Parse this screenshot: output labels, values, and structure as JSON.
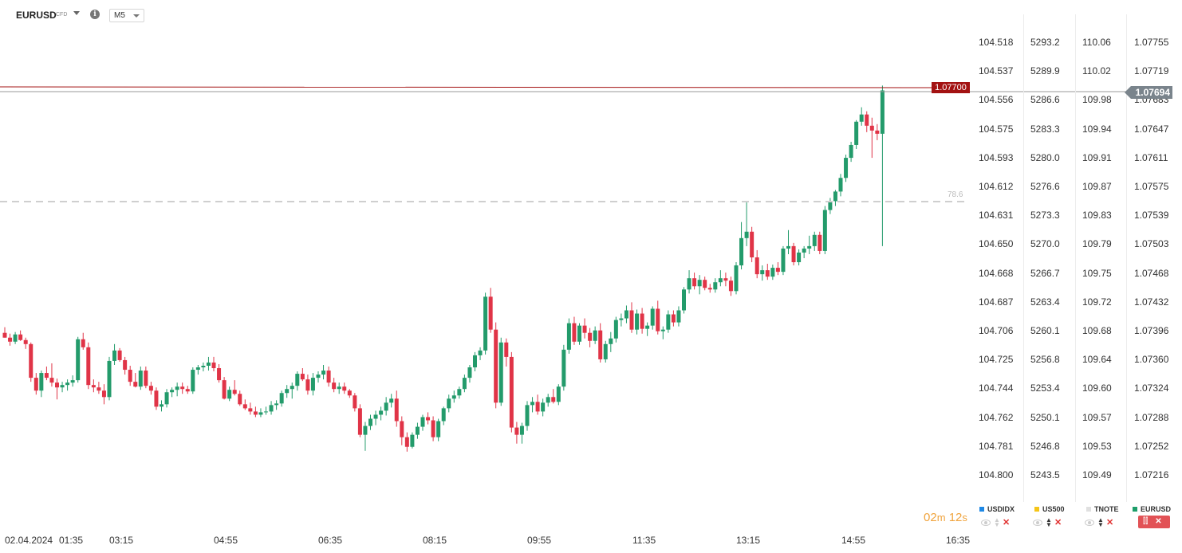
{
  "header": {
    "symbol": "EURUSD",
    "symbol_type": "CFD",
    "timeframe": "M5",
    "info_icon": "i"
  },
  "axes": {
    "usdidx": [
      "104.518",
      "104.537",
      "104.556",
      "104.575",
      "104.593",
      "104.612",
      "104.631",
      "104.650",
      "104.668",
      "104.687",
      "104.706",
      "104.725",
      "104.744",
      "104.762",
      "104.781",
      "104.800"
    ],
    "us500": [
      "5293.2",
      "5289.9",
      "5286.6",
      "5283.3",
      "5280.0",
      "5276.6",
      "5273.3",
      "5270.0",
      "5266.7",
      "5263.4",
      "5260.1",
      "5256.8",
      "5253.4",
      "5250.1",
      "5246.8",
      "5243.5"
    ],
    "tnote": [
      "110.06",
      "110.02",
      "109.98",
      "109.94",
      "109.91",
      "109.87",
      "109.83",
      "109.79",
      "109.75",
      "109.72",
      "109.68",
      "109.64",
      "109.60",
      "109.57",
      "109.53",
      "109.49"
    ],
    "eurusd": [
      "1.07755",
      "1.07719",
      "1.07683",
      "1.07647",
      "1.07611",
      "1.07575",
      "1.07539",
      "1.07503",
      "1.07468",
      "1.07432",
      "1.07396",
      "1.07360",
      "1.07324",
      "1.07288",
      "1.07252",
      "1.07216"
    ]
  },
  "price_tags": {
    "line_price": "1.07700",
    "current_price": "1.07694",
    "fib_level": "78.6"
  },
  "legend": [
    {
      "name": "USDIDX",
      "color": "#1e88e5"
    },
    {
      "name": "US500",
      "color": "#f5c518"
    },
    {
      "name": "TNOTE",
      "color": "#e0e0e0"
    },
    {
      "name": "EURUSD",
      "color": "#1d9e6a"
    }
  ],
  "countdown": {
    "minutes": "02",
    "m": "m",
    "seconds": "12",
    "s": "s"
  },
  "xaxis": {
    "date": "02.04.2024",
    "times": [
      "01:35",
      "03:15",
      "04:55",
      "06:35",
      "08:15",
      "09:55",
      "11:35",
      "13:15",
      "14:55",
      "16:35"
    ]
  },
  "colors": {
    "up": "#239b6b",
    "down": "#e03447",
    "line": "#a31212"
  },
  "chart_data": {
    "type": "candlestick",
    "symbol": "EURUSD",
    "timeframe": "M5",
    "y_range": [
      1.07216,
      1.07755
    ],
    "x_start": "02.04.2024 01:35",
    "candles": [
      [
        1.07392,
        1.07399,
        1.07386,
        1.07386
      ],
      [
        1.07386,
        1.07391,
        1.07376,
        1.07381
      ],
      [
        1.07381,
        1.07393,
        1.07378,
        1.0739
      ],
      [
        1.0739,
        1.07395,
        1.07382,
        1.07383
      ],
      [
        1.07383,
        1.07386,
        1.07372,
        1.07378
      ],
      [
        1.07378,
        1.0738,
        1.07331,
        1.07336
      ],
      [
        1.07336,
        1.07342,
        1.07315,
        1.0732
      ],
      [
        1.0732,
        1.07345,
        1.07312,
        1.07342
      ],
      [
        1.07342,
        1.0735,
        1.07333,
        1.07336
      ],
      [
        1.07336,
        1.07354,
        1.07325,
        1.0733
      ],
      [
        1.0733,
        1.07335,
        1.07309,
        1.07324
      ],
      [
        1.07324,
        1.07331,
        1.07318,
        1.07327
      ],
      [
        1.07327,
        1.07334,
        1.0732,
        1.0733
      ],
      [
        1.0733,
        1.07339,
        1.07325,
        1.07333
      ],
      [
        1.07333,
        1.07387,
        1.0733,
        1.07384
      ],
      [
        1.07384,
        1.07392,
        1.07371,
        1.07374
      ],
      [
        1.07374,
        1.0738,
        1.07322,
        1.07327
      ],
      [
        1.07327,
        1.07334,
        1.07318,
        1.07324
      ],
      [
        1.07324,
        1.07331,
        1.07316,
        1.0732
      ],
      [
        1.0732,
        1.07328,
        1.07303,
        1.07312
      ],
      [
        1.07312,
        1.07362,
        1.07308,
        1.07357
      ],
      [
        1.07357,
        1.07378,
        1.07352,
        1.0737
      ],
      [
        1.0737,
        1.07373,
        1.07356,
        1.07358
      ],
      [
        1.07358,
        1.07362,
        1.0734,
        1.07346
      ],
      [
        1.07346,
        1.07351,
        1.07326,
        1.07331
      ],
      [
        1.07331,
        1.07342,
        1.07324,
        1.07325
      ],
      [
        1.07325,
        1.0735,
        1.07321,
        1.07345
      ],
      [
        1.07345,
        1.0735,
        1.07323,
        1.07326
      ],
      [
        1.07326,
        1.07331,
        1.07315,
        1.0732
      ],
      [
        1.0732,
        1.07324,
        1.07296,
        1.073
      ],
      [
        1.073,
        1.07308,
        1.07294,
        1.07303
      ],
      [
        1.07303,
        1.07322,
        1.07299,
        1.07318
      ],
      [
        1.07318,
        1.07324,
        1.07312,
        1.07321
      ],
      [
        1.07321,
        1.0733,
        1.07313,
        1.07325
      ],
      [
        1.07325,
        1.0733,
        1.07316,
        1.07322
      ],
      [
        1.07322,
        1.07326,
        1.07316,
        1.07319
      ],
      [
        1.07319,
        1.07349,
        1.07316,
        1.07346
      ],
      [
        1.07346,
        1.07352,
        1.0734,
        1.07349
      ],
      [
        1.07349,
        1.07355,
        1.07344,
        1.07351
      ],
      [
        1.07351,
        1.07362,
        1.07345,
        1.07355
      ],
      [
        1.07355,
        1.07362,
        1.07344,
        1.07348
      ],
      [
        1.07348,
        1.07353,
        1.0733,
        1.07333
      ],
      [
        1.07333,
        1.07337,
        1.07309,
        1.0731
      ],
      [
        1.0731,
        1.07325,
        1.07307,
        1.07321
      ],
      [
        1.07321,
        1.07333,
        1.07314,
        1.07316
      ],
      [
        1.07316,
        1.0732,
        1.07301,
        1.07303
      ],
      [
        1.07303,
        1.07309,
        1.07296,
        1.07298
      ],
      [
        1.07298,
        1.07305,
        1.0729,
        1.07294
      ],
      [
        1.07294,
        1.073,
        1.07287,
        1.0729
      ],
      [
        1.0729,
        1.07298,
        1.07287,
        1.07293
      ],
      [
        1.07293,
        1.073,
        1.0729,
        1.07294
      ],
      [
        1.07294,
        1.07307,
        1.0729,
        1.07302
      ],
      [
        1.07302,
        1.07308,
        1.07296,
        1.07304
      ],
      [
        1.07304,
        1.0732,
        1.073,
        1.07317
      ],
      [
        1.07317,
        1.07327,
        1.07311,
        1.07322
      ],
      [
        1.07322,
        1.0733,
        1.0731,
        1.07326
      ],
      [
        1.07326,
        1.07344,
        1.0732,
        1.07341
      ],
      [
        1.07341,
        1.07348,
        1.07332,
        1.07334
      ],
      [
        1.07334,
        1.0734,
        1.07315,
        1.0732
      ],
      [
        1.0732,
        1.07342,
        1.07314,
        1.07336
      ],
      [
        1.07336,
        1.07344,
        1.0733,
        1.0734
      ],
      [
        1.0734,
        1.07352,
        1.07334,
        1.07345
      ],
      [
        1.07345,
        1.0735,
        1.07325,
        1.0733
      ],
      [
        1.0733,
        1.07336,
        1.07318,
        1.07322
      ],
      [
        1.07322,
        1.0733,
        1.07316,
        1.07325
      ],
      [
        1.07325,
        1.0733,
        1.07316,
        1.0732
      ],
      [
        1.0732,
        1.07322,
        1.07311,
        1.07314
      ],
      [
        1.07314,
        1.07317,
        1.07294,
        1.07298
      ],
      [
        1.07298,
        1.07303,
        1.07262,
        1.07265
      ],
      [
        1.07265,
        1.07281,
        1.07245,
        1.07276
      ],
      [
        1.07276,
        1.0729,
        1.07271,
        1.07285
      ],
      [
        1.07285,
        1.07295,
        1.07277,
        1.0729
      ],
      [
        1.0729,
        1.073,
        1.07283,
        1.07295
      ],
      [
        1.07295,
        1.07312,
        1.07289,
        1.07305
      ],
      [
        1.07305,
        1.07316,
        1.07299,
        1.0731
      ],
      [
        1.0731,
        1.0732,
        1.07275,
        1.07282
      ],
      [
        1.07282,
        1.07288,
        1.07252,
        1.07262
      ],
      [
        1.07262,
        1.07268,
        1.07244,
        1.0725
      ],
      [
        1.0725,
        1.07268,
        1.07248,
        1.07265
      ],
      [
        1.07265,
        1.0728,
        1.0726,
        1.07275
      ],
      [
        1.07275,
        1.0729,
        1.0727,
        1.07287
      ],
      [
        1.07287,
        1.07293,
        1.07278,
        1.07283
      ],
      [
        1.07283,
        1.07288,
        1.07257,
        1.07262
      ],
      [
        1.07262,
        1.07285,
        1.07257,
        1.07282
      ],
      [
        1.07282,
        1.073,
        1.07277,
        1.07298
      ],
      [
        1.07298,
        1.07315,
        1.07293,
        1.0731
      ],
      [
        1.0731,
        1.0732,
        1.07305,
        1.07314
      ],
      [
        1.07314,
        1.07325,
        1.0731,
        1.07322
      ],
      [
        1.07322,
        1.0734,
        1.07318,
        1.07336
      ],
      [
        1.07336,
        1.07352,
        1.0733,
        1.07349
      ],
      [
        1.07349,
        1.07368,
        1.07344,
        1.07364
      ],
      [
        1.07364,
        1.07374,
        1.07358,
        1.0737
      ],
      [
        1.0737,
        1.07442,
        1.07365,
        1.07437
      ],
      [
        1.07437,
        1.07448,
        1.07392,
        1.07396
      ],
      [
        1.07396,
        1.07405,
        1.07298,
        1.07305
      ],
      [
        1.07305,
        1.07386,
        1.07301,
        1.0738
      ],
      [
        1.0738,
        1.07385,
        1.0735,
        1.07362
      ],
      [
        1.07362,
        1.07368,
        1.07268,
        1.07274
      ],
      [
        1.07274,
        1.07281,
        1.07254,
        1.07265
      ],
      [
        1.07265,
        1.0728,
        1.07254,
        1.07276
      ],
      [
        1.07276,
        1.07307,
        1.0727,
        1.07302
      ],
      [
        1.07302,
        1.07312,
        1.07293,
        1.07306
      ],
      [
        1.07306,
        1.07315,
        1.0729,
        1.07294
      ],
      [
        1.07294,
        1.0731,
        1.07288,
        1.07305
      ],
      [
        1.07305,
        1.07316,
        1.073,
        1.07312
      ],
      [
        1.07312,
        1.07322,
        1.07304,
        1.07306
      ],
      [
        1.07306,
        1.07328,
        1.07302,
        1.07325
      ],
      [
        1.07325,
        1.07377,
        1.0732,
        1.07371
      ],
      [
        1.07371,
        1.0741,
        1.07366,
        1.07404
      ],
      [
        1.07404,
        1.07412,
        1.07377,
        1.07381
      ],
      [
        1.07381,
        1.07404,
        1.07377,
        1.07401
      ],
      [
        1.07401,
        1.0741,
        1.07385,
        1.07392
      ],
      [
        1.07392,
        1.07398,
        1.07374,
        1.07382
      ],
      [
        1.07382,
        1.074,
        1.07378,
        1.07395
      ],
      [
        1.07395,
        1.07404,
        1.07355,
        1.07359
      ],
      [
        1.07359,
        1.07382,
        1.07355,
        1.07378
      ],
      [
        1.07378,
        1.07393,
        1.07368,
        1.07385
      ],
      [
        1.07385,
        1.07412,
        1.0738,
        1.07408
      ],
      [
        1.07408,
        1.07416,
        1.074,
        1.0741
      ],
      [
        1.0741,
        1.07426,
        1.07404,
        1.0742
      ],
      [
        1.0742,
        1.0743,
        1.07392,
        1.07396
      ],
      [
        1.07396,
        1.07421,
        1.0739,
        1.07416
      ],
      [
        1.07416,
        1.07423,
        1.07391,
        1.07397
      ],
      [
        1.07397,
        1.07405,
        1.07388,
        1.07401
      ],
      [
        1.07401,
        1.07425,
        1.07396,
        1.07422
      ],
      [
        1.07422,
        1.07432,
        1.0739,
        1.07394
      ],
      [
        1.07394,
        1.074,
        1.07384,
        1.07396
      ],
      [
        1.07396,
        1.0742,
        1.07392,
        1.07415
      ],
      [
        1.07415,
        1.0742,
        1.074,
        1.07405
      ],
      [
        1.07405,
        1.07425,
        1.074,
        1.0742
      ],
      [
        1.0742,
        1.07449,
        1.07416,
        1.07446
      ],
      [
        1.07446,
        1.0747,
        1.07441,
        1.0746
      ],
      [
        1.0746,
        1.07467,
        1.07446,
        1.0745
      ],
      [
        1.0745,
        1.07464,
        1.0744,
        1.07458
      ],
      [
        1.07458,
        1.07462,
        1.07445,
        1.07448
      ],
      [
        1.07448,
        1.07453,
        1.07442,
        1.07446
      ],
      [
        1.07446,
        1.0746,
        1.07442,
        1.07455
      ],
      [
        1.07455,
        1.0747,
        1.0745,
        1.0746
      ],
      [
        1.0746,
        1.07467,
        1.0745,
        1.07457
      ],
      [
        1.07457,
        1.07462,
        1.07438,
        1.07444
      ],
      [
        1.07444,
        1.0748,
        1.0744,
        1.07476
      ],
      [
        1.07476,
        1.0753,
        1.07471,
        1.0751
      ],
      [
        1.0751,
        1.07555,
        1.075,
        1.07518
      ],
      [
        1.07518,
        1.07524,
        1.0748,
        1.07486
      ],
      [
        1.07486,
        1.07495,
        1.0746,
        1.07465
      ],
      [
        1.07465,
        1.07476,
        1.07457,
        1.0747
      ],
      [
        1.0747,
        1.07478,
        1.07458,
        1.07462
      ],
      [
        1.07462,
        1.07477,
        1.07458,
        1.07473
      ],
      [
        1.07473,
        1.0748,
        1.07464,
        1.07468
      ],
      [
        1.07468,
        1.075,
        1.07464,
        1.07497
      ],
      [
        1.07497,
        1.0752,
        1.0749,
        1.075
      ],
      [
        1.075,
        1.07504,
        1.07476,
        1.0748
      ],
      [
        1.0748,
        1.07496,
        1.07476,
        1.07492
      ],
      [
        1.07492,
        1.075,
        1.07485,
        1.07497
      ],
      [
        1.07497,
        1.07513,
        1.0749,
        1.075
      ],
      [
        1.075,
        1.07518,
        1.07494,
        1.07514
      ],
      [
        1.07514,
        1.07518,
        1.0749,
        1.07494
      ],
      [
        1.07494,
        1.0755,
        1.0749,
        1.07545
      ],
      [
        1.07545,
        1.0756,
        1.0754,
        1.07556
      ],
      [
        1.07556,
        1.0757,
        1.0755,
        1.07568
      ],
      [
        1.07568,
        1.0759,
        1.07562,
        1.07585
      ],
      [
        1.07585,
        1.07614,
        1.0758,
        1.0761
      ],
      [
        1.0761,
        1.0763,
        1.07605,
        1.07626
      ],
      [
        1.07626,
        1.07657,
        1.07621,
        1.07655
      ],
      [
        1.07655,
        1.07673,
        1.0765,
        1.07664
      ],
      [
        1.07664,
        1.07668,
        1.07642,
        1.0765
      ],
      [
        1.0765,
        1.0766,
        1.0761,
        1.07644
      ],
      [
        1.07644,
        1.07652,
        1.07632,
        1.0764
      ],
      [
        1.0764,
        1.077,
        1.075,
        1.07694
      ]
    ]
  }
}
